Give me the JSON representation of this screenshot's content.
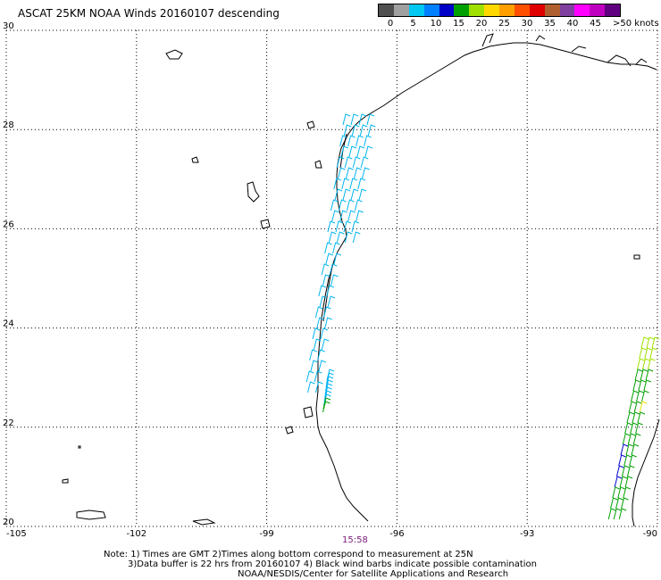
{
  "title": "ASCAT 25KM NOAA Winds 20160107 descending",
  "legend": {
    "colors": [
      "#505050",
      "#a0a0a0",
      "#00c8f0",
      "#0080ff",
      "#0000c8",
      "#00a000",
      "#a0e000",
      "#ffd800",
      "#ffa000",
      "#ff5000",
      "#e00000",
      "#b06030",
      "#8040a0",
      "#ff00ff",
      "#c000c0",
      "#600080"
    ],
    "labels": [
      "0",
      "5",
      "10",
      "15",
      "20",
      "25",
      "30",
      "35",
      "40",
      "45"
    ],
    "last_label": ">50 knots"
  },
  "axes": {
    "x_ticks": [
      "-105",
      "-102",
      "-99",
      "-96",
      "-93",
      "-90"
    ],
    "y_ticks": [
      "30",
      "28",
      "26",
      "24",
      "22",
      "20"
    ],
    "x_range": [
      -105,
      -90
    ],
    "y_range": [
      20,
      30
    ]
  },
  "time_label": "15:58",
  "notes": [
    "Note: 1) Times are GMT 2)Times along bottom correspond to measurement at 25N",
    "3)Data buffer is 22 hrs from 20160107 4) Black wind barbs indicate possible contamination",
    "NOAA/NESDIS/Center for Satellite Applications and Research"
  ],
  "wind_colors": {
    "light_blue": "#00b4f0",
    "blue": "#0000d0",
    "green": "#00a000",
    "yellow_green": "#a0e000",
    "yellow": "#e8e000"
  }
}
